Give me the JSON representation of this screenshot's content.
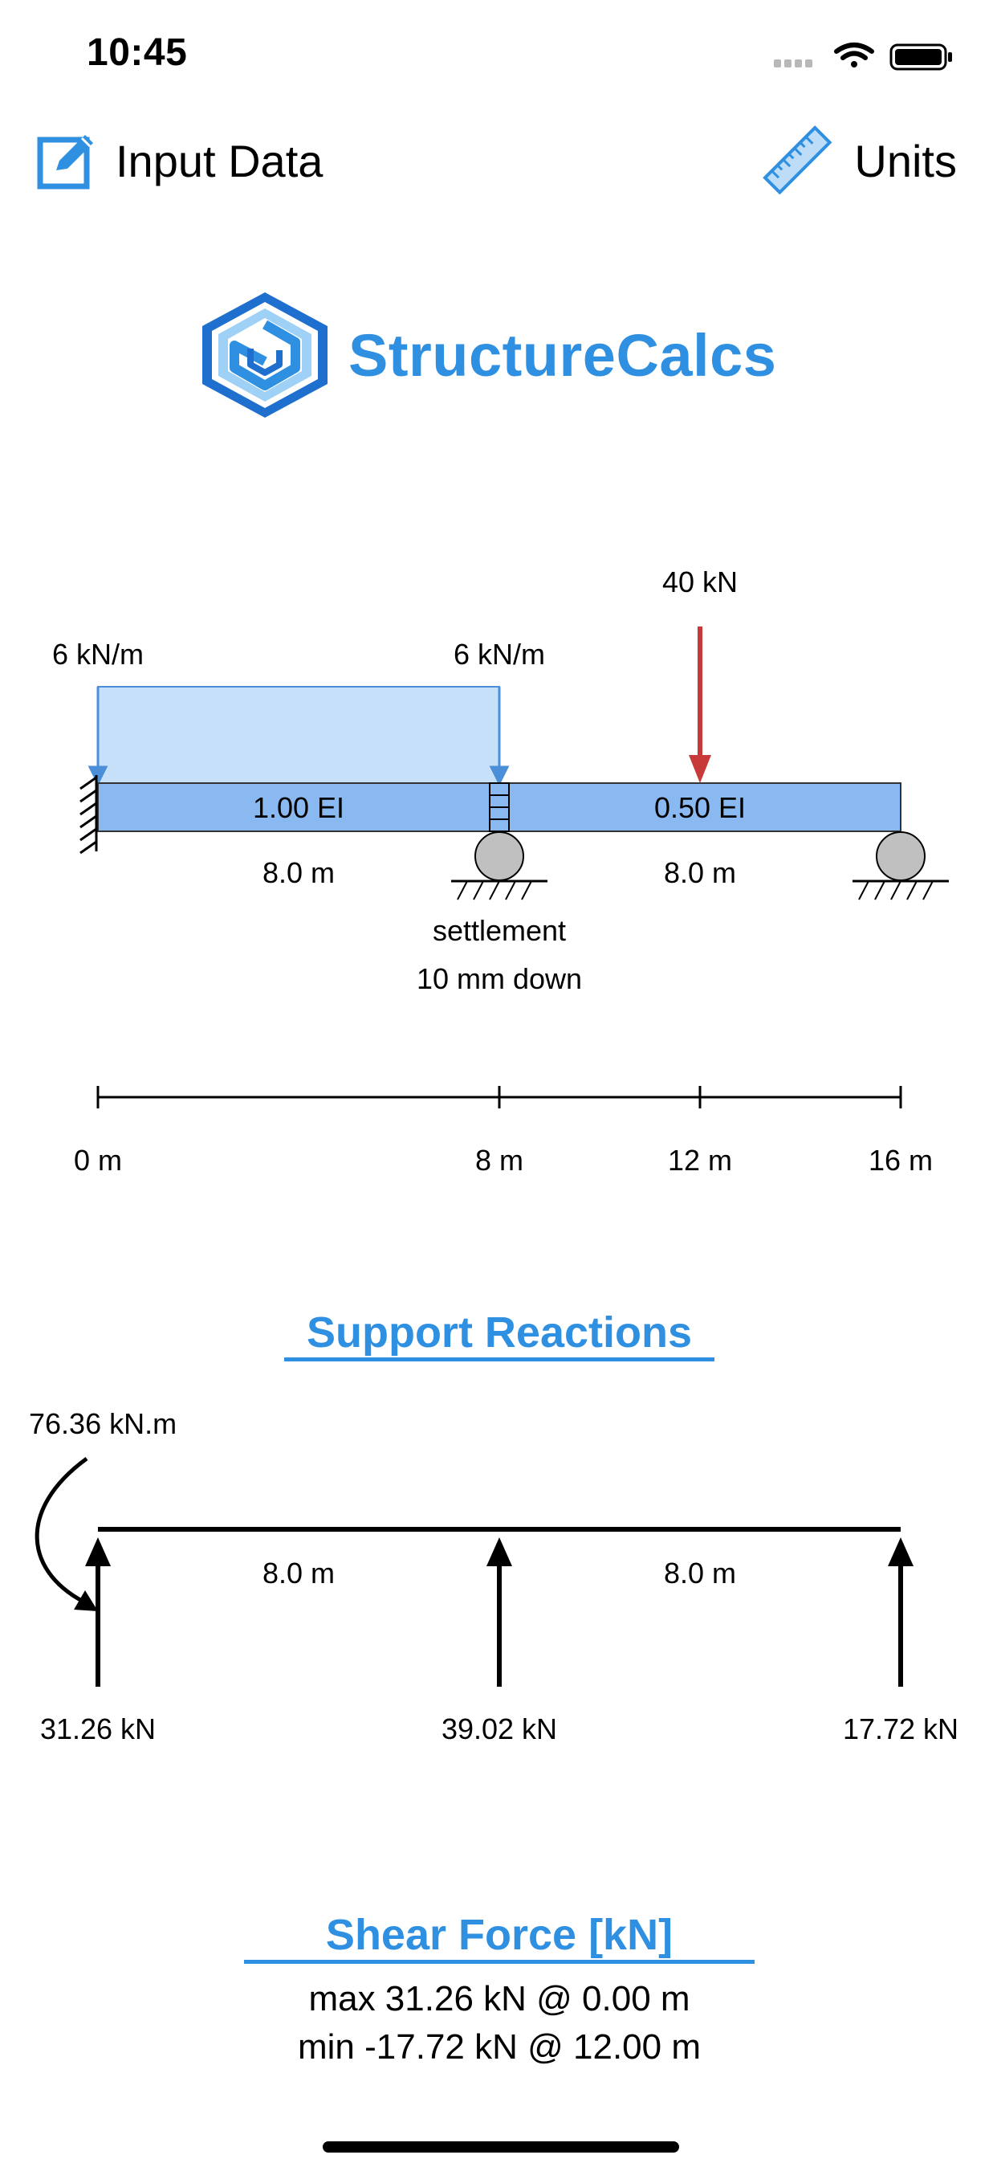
{
  "status_bar": {
    "time": "10:45"
  },
  "nav": {
    "input_label": "Input Data",
    "units_label": "Units"
  },
  "app": {
    "name": "StructureCalcs"
  },
  "beam": {
    "udl_start_label": "6 kN/m",
    "udl_end_label": "6 kN/m",
    "point_load_label": "40 kN",
    "span1_ei": "1.00 EI",
    "span2_ei": "0.50 EI",
    "span1_length": "8.0 m",
    "span2_length": "8.0 m",
    "settlement_line1": "settlement",
    "settlement_line2": "10 mm down",
    "dimension_labels": [
      "0 m",
      "8 m",
      "12 m",
      "16 m"
    ]
  },
  "reactions": {
    "title": "Support Reactions",
    "moment": "76.36 kN.m",
    "span1_length": "8.0 m",
    "span2_length": "8.0 m",
    "r1": "31.26 kN",
    "r2": "39.02 kN",
    "r3": "17.72 kN"
  },
  "shear": {
    "title": "Shear Force [kN]",
    "max_line": "max 31.26 kN @ 0.00 m",
    "min_line": "min -17.72 kN @ 12.00 m"
  },
  "colors": {
    "accent": "#2f8fe0",
    "beam_fill": "#8ab8f0",
    "udl_fill": "#c7e0fa",
    "point_load": "#c83a3a",
    "support_fill": "#c0c0c0"
  }
}
